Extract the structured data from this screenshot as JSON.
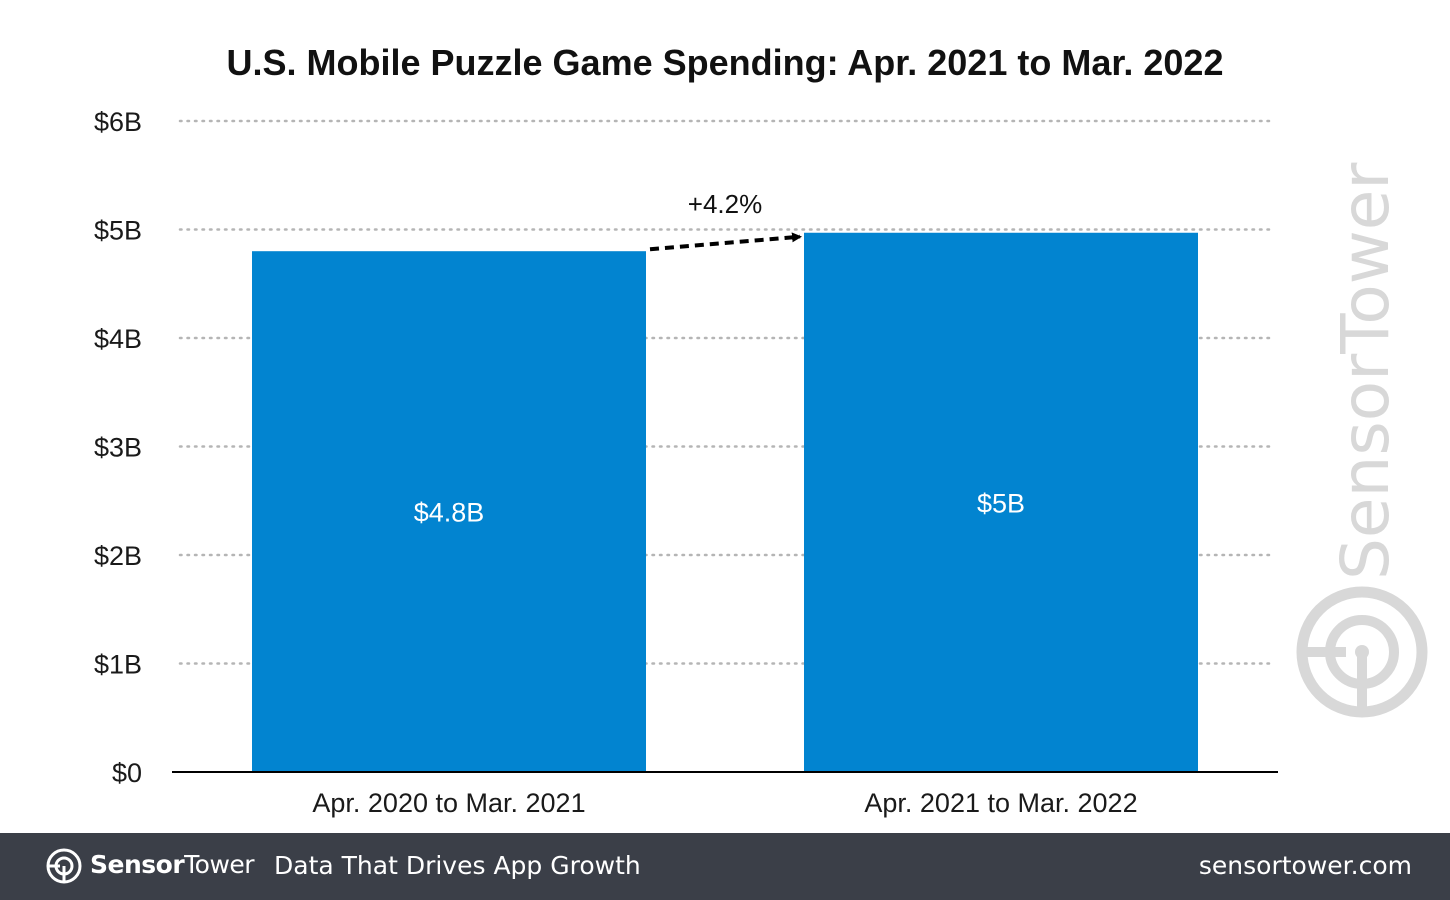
{
  "chart_data": {
    "type": "bar",
    "title": "U.S. Mobile Puzzle Game Spending: Apr. 2021 to Mar. 2022",
    "categories": [
      "Apr. 2020 to Mar. 2021",
      "Apr. 2021 to Mar. 2022"
    ],
    "values": [
      4.8,
      4.97
    ],
    "data_labels": [
      "$4.8B",
      "$5B"
    ],
    "ylim": [
      0,
      6
    ],
    "yticks": [
      0,
      1,
      2,
      3,
      4,
      5,
      6
    ],
    "ytick_labels": [
      "$0",
      "$1B",
      "$2B",
      "$3B",
      "$4B",
      "$5B",
      "$6B"
    ],
    "xlabel": "",
    "ylabel": "",
    "grid": true,
    "bar_color": "#0284d0",
    "annotation": {
      "text": "+4.2%",
      "from": 0,
      "to": 1
    }
  },
  "watermark": {
    "text": "SensorTower",
    "color": "#d8d8d8"
  },
  "footer": {
    "brand_bold": "Sensor",
    "brand_rest": "Tower",
    "tagline": "Data That Drives App Growth",
    "url": "sensortower.com",
    "background": "#3b3f48"
  }
}
